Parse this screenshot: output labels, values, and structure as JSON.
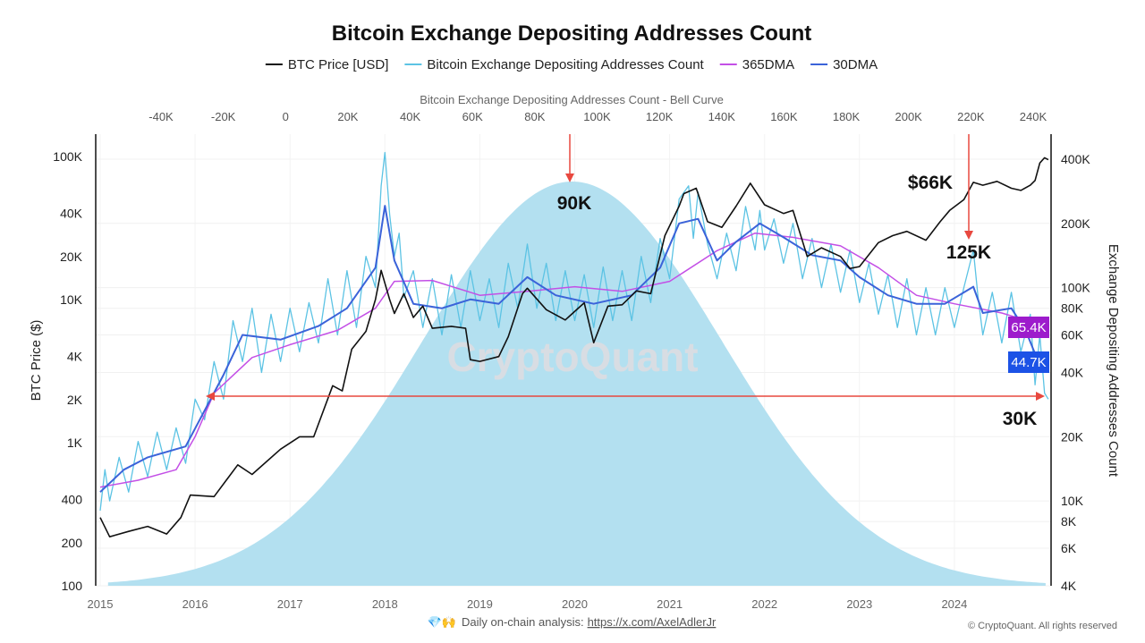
{
  "chart_data": {
    "type": "line",
    "title": "Bitcoin Exchange Depositing Addresses Count",
    "legend": [
      "BTC Price [USD]",
      "Bitcoin Exchange Depositing Addresses Count",
      "365DMA",
      "30DMA"
    ],
    "legend_placement": "top",
    "colors": {
      "btc": "#111111",
      "addresses": "#5cc3e4",
      "dma365": "#c34fe6",
      "dma30": "#3b63d9",
      "bell": "#b3e0f0",
      "arrow": "#e8483f",
      "badge365": "#9d1ccc",
      "badge30": "#1c52e6"
    },
    "xlabel": "",
    "x_ticks": [
      "2015",
      "2016",
      "2017",
      "2018",
      "2019",
      "2020",
      "2021",
      "2022",
      "2023",
      "2024"
    ],
    "xlim": [
      2015,
      2025
    ],
    "y_left": {
      "label": "BTC Price ($)",
      "scale": "log",
      "range": [
        100,
        150000
      ],
      "ticks": [
        "100",
        "200",
        "400",
        "1K",
        "2K",
        "4K",
        "10K",
        "20K",
        "40K",
        "100K"
      ],
      "tick_values": [
        100,
        200,
        400,
        1000,
        2000,
        4000,
        10000,
        20000,
        40000,
        100000
      ]
    },
    "y_right": {
      "label": "Exchange Depositing Addresses Count",
      "scale": "log",
      "range": [
        4000,
        450000
      ],
      "ticks": [
        "4K",
        "6K",
        "8K",
        "10K",
        "20K",
        "40K",
        "60K",
        "80K",
        "100K",
        "200K",
        "400K"
      ],
      "tick_values": [
        4000,
        6000,
        8000,
        10000,
        20000,
        40000,
        60000,
        80000,
        100000,
        200000,
        400000
      ]
    },
    "x_top": {
      "label": "Bitcoin Exchange Depositing Addresses Count - Bell Curve",
      "range": [
        -60000,
        250000
      ],
      "ticks": [
        "-40K",
        "-20K",
        "0",
        "20K",
        "40K",
        "60K",
        "80K",
        "100K",
        "120K",
        "140K",
        "160K",
        "180K",
        "200K",
        "220K",
        "240K"
      ],
      "tick_values": [
        -40000,
        -20000,
        0,
        20000,
        40000,
        60000,
        80000,
        100000,
        120000,
        140000,
        160000,
        180000,
        200000,
        220000,
        240000
      ]
    },
    "bell_curve": {
      "mean": 92000,
      "std": 48000,
      "from": -57000,
      "to": 244000
    },
    "grid": true,
    "series": [
      {
        "name": "BTC Price [USD]",
        "axis": "left",
        "points": [
          [
            2015.0,
            300
          ],
          [
            2015.1,
            220
          ],
          [
            2015.3,
            240
          ],
          [
            2015.5,
            260
          ],
          [
            2015.7,
            230
          ],
          [
            2015.85,
            300
          ],
          [
            2015.95,
            430
          ],
          [
            2016.2,
            420
          ],
          [
            2016.45,
            700
          ],
          [
            2016.6,
            600
          ],
          [
            2016.9,
            900
          ],
          [
            2017.1,
            1100
          ],
          [
            2017.25,
            1100
          ],
          [
            2017.45,
            2500
          ],
          [
            2017.55,
            2300
          ],
          [
            2017.65,
            4500
          ],
          [
            2017.8,
            6000
          ],
          [
            2017.9,
            10000
          ],
          [
            2017.96,
            16000
          ],
          [
            2018.05,
            10000
          ],
          [
            2018.1,
            8000
          ],
          [
            2018.2,
            11000
          ],
          [
            2018.3,
            7500
          ],
          [
            2018.4,
            9000
          ],
          [
            2018.5,
            6300
          ],
          [
            2018.7,
            6500
          ],
          [
            2018.85,
            6300
          ],
          [
            2018.9,
            3800
          ],
          [
            2019.0,
            3700
          ],
          [
            2019.2,
            4000
          ],
          [
            2019.3,
            5500
          ],
          [
            2019.45,
            11000
          ],
          [
            2019.5,
            12000
          ],
          [
            2019.7,
            8500
          ],
          [
            2019.9,
            7200
          ],
          [
            2020.1,
            9500
          ],
          [
            2020.2,
            5000
          ],
          [
            2020.35,
            9000
          ],
          [
            2020.5,
            9200
          ],
          [
            2020.65,
            11500
          ],
          [
            2020.8,
            11000
          ],
          [
            2020.95,
            28000
          ],
          [
            2021.1,
            45000
          ],
          [
            2021.15,
            55000
          ],
          [
            2021.28,
            60000
          ],
          [
            2021.4,
            35000
          ],
          [
            2021.55,
            32000
          ],
          [
            2021.7,
            45000
          ],
          [
            2021.85,
            65000
          ],
          [
            2022.0,
            46000
          ],
          [
            2022.2,
            40000
          ],
          [
            2022.3,
            42000
          ],
          [
            2022.45,
            20000
          ],
          [
            2022.6,
            23000
          ],
          [
            2022.8,
            20000
          ],
          [
            2022.9,
            16500
          ],
          [
            2023.0,
            17000
          ],
          [
            2023.2,
            25000
          ],
          [
            2023.35,
            28000
          ],
          [
            2023.5,
            30000
          ],
          [
            2023.7,
            26000
          ],
          [
            2023.85,
            35000
          ],
          [
            2023.95,
            42000
          ],
          [
            2024.1,
            50000
          ],
          [
            2024.2,
            66000
          ],
          [
            2024.3,
            63000
          ],
          [
            2024.45,
            67000
          ],
          [
            2024.6,
            60000
          ],
          [
            2024.7,
            58000
          ],
          [
            2024.8,
            63000
          ],
          [
            2024.85,
            68000
          ],
          [
            2024.9,
            90000
          ],
          [
            2024.95,
            98000
          ],
          [
            2024.99,
            95000
          ]
        ]
      },
      {
        "name": "Bitcoin Exchange Depositing Addresses Count",
        "axis": "right",
        "points": [
          [
            2015.0,
            9000
          ],
          [
            2015.05,
            14000
          ],
          [
            2015.1,
            10000
          ],
          [
            2015.2,
            16000
          ],
          [
            2015.3,
            11000
          ],
          [
            2015.4,
            19000
          ],
          [
            2015.5,
            13000
          ],
          [
            2015.6,
            21000
          ],
          [
            2015.7,
            14000
          ],
          [
            2015.8,
            22000
          ],
          [
            2015.9,
            15000
          ],
          [
            2016.0,
            30000
          ],
          [
            2016.1,
            24000
          ],
          [
            2016.2,
            45000
          ],
          [
            2016.3,
            30000
          ],
          [
            2016.4,
            70000
          ],
          [
            2016.5,
            45000
          ],
          [
            2016.6,
            80000
          ],
          [
            2016.7,
            40000
          ],
          [
            2016.8,
            75000
          ],
          [
            2016.9,
            45000
          ],
          [
            2017.0,
            80000
          ],
          [
            2017.1,
            50000
          ],
          [
            2017.2,
            85000
          ],
          [
            2017.3,
            55000
          ],
          [
            2017.4,
            110000
          ],
          [
            2017.5,
            60000
          ],
          [
            2017.6,
            120000
          ],
          [
            2017.7,
            65000
          ],
          [
            2017.8,
            140000
          ],
          [
            2017.9,
            100000
          ],
          [
            2017.96,
            300000
          ],
          [
            2018.0,
            430000
          ],
          [
            2018.05,
            220000
          ],
          [
            2018.1,
            140000
          ],
          [
            2018.15,
            180000
          ],
          [
            2018.2,
            90000
          ],
          [
            2018.3,
            120000
          ],
          [
            2018.4,
            65000
          ],
          [
            2018.5,
            110000
          ],
          [
            2018.6,
            60000
          ],
          [
            2018.7,
            115000
          ],
          [
            2018.8,
            65000
          ],
          [
            2018.9,
            120000
          ],
          [
            2019.0,
            70000
          ],
          [
            2019.1,
            110000
          ],
          [
            2019.2,
            65000
          ],
          [
            2019.3,
            130000
          ],
          [
            2019.4,
            80000
          ],
          [
            2019.5,
            160000
          ],
          [
            2019.6,
            80000
          ],
          [
            2019.7,
            130000
          ],
          [
            2019.8,
            70000
          ],
          [
            2019.9,
            120000
          ],
          [
            2020.0,
            70000
          ],
          [
            2020.1,
            115000
          ],
          [
            2020.2,
            65000
          ],
          [
            2020.3,
            125000
          ],
          [
            2020.4,
            70000
          ],
          [
            2020.5,
            120000
          ],
          [
            2020.6,
            70000
          ],
          [
            2020.7,
            140000
          ],
          [
            2020.8,
            85000
          ],
          [
            2020.9,
            170000
          ],
          [
            2021.0,
            110000
          ],
          [
            2021.1,
            260000
          ],
          [
            2021.2,
            300000
          ],
          [
            2021.25,
            170000
          ],
          [
            2021.3,
            280000
          ],
          [
            2021.4,
            160000
          ],
          [
            2021.5,
            110000
          ],
          [
            2021.6,
            180000
          ],
          [
            2021.7,
            120000
          ],
          [
            2021.8,
            240000
          ],
          [
            2021.9,
            150000
          ],
          [
            2021.95,
            230000
          ],
          [
            2022.0,
            150000
          ],
          [
            2022.1,
            210000
          ],
          [
            2022.2,
            130000
          ],
          [
            2022.3,
            200000
          ],
          [
            2022.4,
            110000
          ],
          [
            2022.5,
            170000
          ],
          [
            2022.6,
            100000
          ],
          [
            2022.7,
            160000
          ],
          [
            2022.8,
            95000
          ],
          [
            2022.9,
            150000
          ],
          [
            2023.0,
            85000
          ],
          [
            2023.1,
            130000
          ],
          [
            2023.2,
            75000
          ],
          [
            2023.3,
            115000
          ],
          [
            2023.4,
            65000
          ],
          [
            2023.5,
            110000
          ],
          [
            2023.6,
            60000
          ],
          [
            2023.7,
            100000
          ],
          [
            2023.8,
            60000
          ],
          [
            2023.9,
            100000
          ],
          [
            2024.0,
            65000
          ],
          [
            2024.1,
            100000
          ],
          [
            2024.2,
            150000
          ],
          [
            2024.25,
            90000
          ],
          [
            2024.3,
            60000
          ],
          [
            2024.4,
            95000
          ],
          [
            2024.5,
            55000
          ],
          [
            2024.6,
            95000
          ],
          [
            2024.7,
            50000
          ],
          [
            2024.8,
            75000
          ],
          [
            2024.85,
            35000
          ],
          [
            2024.9,
            60000
          ],
          [
            2024.95,
            32000
          ],
          [
            2024.99,
            30000
          ]
        ]
      },
      {
        "name": "365DMA",
        "axis": "right",
        "points": [
          [
            2015.0,
            11600
          ],
          [
            2015.4,
            12500
          ],
          [
            2015.8,
            14000
          ],
          [
            2016.0,
            20000
          ],
          [
            2016.2,
            32000
          ],
          [
            2016.6,
            47000
          ],
          [
            2017.0,
            54000
          ],
          [
            2017.5,
            63000
          ],
          [
            2017.9,
            80000
          ],
          [
            2018.1,
            107000
          ],
          [
            2018.5,
            108000
          ],
          [
            2019.0,
            92000
          ],
          [
            2019.5,
            96000
          ],
          [
            2020.0,
            101000
          ],
          [
            2020.5,
            96000
          ],
          [
            2021.0,
            107000
          ],
          [
            2021.5,
            149000
          ],
          [
            2021.9,
            180000
          ],
          [
            2022.3,
            172000
          ],
          [
            2022.8,
            157000
          ],
          [
            2023.2,
            124000
          ],
          [
            2023.6,
            92000
          ],
          [
            2024.0,
            84000
          ],
          [
            2024.5,
            76000
          ],
          [
            2024.99,
            65400
          ]
        ]
      },
      {
        "name": "30DMA",
        "axis": "right",
        "points": [
          [
            2015.0,
            11000
          ],
          [
            2015.25,
            14000
          ],
          [
            2015.5,
            16000
          ],
          [
            2015.9,
            18000
          ],
          [
            2016.3,
            39000
          ],
          [
            2016.5,
            60000
          ],
          [
            2016.9,
            57000
          ],
          [
            2017.3,
            66000
          ],
          [
            2017.6,
            80000
          ],
          [
            2017.9,
            124000
          ],
          [
            2018.0,
            242000
          ],
          [
            2018.1,
            134000
          ],
          [
            2018.3,
            84000
          ],
          [
            2018.6,
            80000
          ],
          [
            2018.9,
            88000
          ],
          [
            2019.2,
            84000
          ],
          [
            2019.5,
            112000
          ],
          [
            2019.8,
            92000
          ],
          [
            2020.2,
            84000
          ],
          [
            2020.6,
            92000
          ],
          [
            2020.9,
            124000
          ],
          [
            2021.1,
            200000
          ],
          [
            2021.3,
            210000
          ],
          [
            2021.5,
            134000
          ],
          [
            2021.7,
            164000
          ],
          [
            2021.95,
            200000
          ],
          [
            2022.2,
            172000
          ],
          [
            2022.5,
            142000
          ],
          [
            2022.8,
            134000
          ],
          [
            2023.0,
            112000
          ],
          [
            2023.3,
            92000
          ],
          [
            2023.6,
            84000
          ],
          [
            2023.9,
            84000
          ],
          [
            2024.2,
            101000
          ],
          [
            2024.3,
            76000
          ],
          [
            2024.6,
            80000
          ],
          [
            2024.75,
            63000
          ],
          [
            2024.85,
            49000
          ],
          [
            2024.99,
            44700
          ]
        ]
      }
    ],
    "annotations": [
      "90K",
      "$66K",
      "125K",
      "30K"
    ],
    "badges": [
      "65.4K",
      "44.7K"
    ],
    "watermark": "CryptoQuant"
  },
  "footer": {
    "emoji": "💎🙌",
    "text": "Daily on-chain analysis: ",
    "link": "https://x.com/AxelAdlerJr",
    "copyright": "© CryptoQuant. All rights reserved"
  }
}
